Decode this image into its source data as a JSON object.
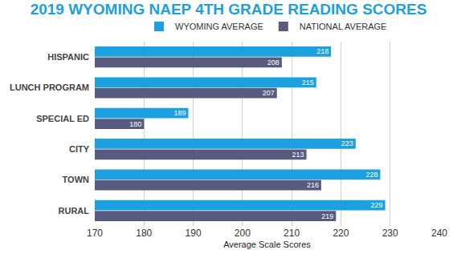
{
  "chart_data": {
    "type": "bar",
    "title": "2019 WYOMING NAEP 4TH GRADE READING SCORES",
    "orientation": "horizontal",
    "categories": [
      "HISPANIC",
      "LUNCH PROGRAM",
      "SPECIAL ED",
      "CITY",
      "TOWN",
      "RURAL"
    ],
    "series": [
      {
        "name": "WYOMING AVERAGE",
        "color": "#1ca0e0",
        "values": [
          218,
          215,
          189,
          223,
          228,
          229
        ]
      },
      {
        "name": "NATIONAL AVERAGE",
        "color": "#575b7f",
        "values": [
          208,
          207,
          180,
          213,
          216,
          219
        ]
      }
    ],
    "xlabel": "Average Scale Scores",
    "xlim": [
      170,
      240
    ],
    "xticks": [
      170,
      180,
      190,
      200,
      210,
      220,
      230,
      240
    ],
    "grid": true,
    "data_labels": true,
    "legend": "top"
  }
}
